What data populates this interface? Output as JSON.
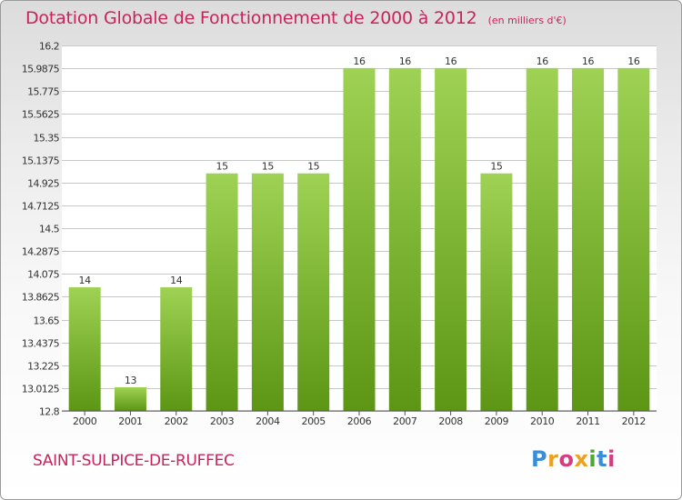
{
  "header": {
    "title": "Dotation Globale de Fonctionnement de 2000 à 2012",
    "subtitle": "(en milliers d'€)"
  },
  "footer": {
    "commune": "SAINT-SULPICE-DE-RUFFEC",
    "logo_letters": [
      "P",
      "r",
      "o",
      "x",
      "i",
      "t",
      "i"
    ],
    "logo_colors": [
      "#3a8ed8",
      "#f0a020",
      "#d83c80",
      "#f0a020",
      "#4ca830",
      "#3a8ed8",
      "#d83c80"
    ]
  },
  "colors": {
    "bar_top": "#9fd254",
    "bar_bottom": "#5c9614",
    "grid": "#c8c8c8",
    "text": "#333333",
    "title": "#c8245a"
  },
  "chart_data": {
    "type": "bar",
    "title": "Dotation Globale de Fonctionnement de 2000 à 2012",
    "subtitle": "(en milliers d'€)",
    "categories": [
      "2000",
      "2001",
      "2002",
      "2003",
      "2004",
      "2005",
      "2006",
      "2007",
      "2008",
      "2009",
      "2010",
      "2011",
      "2012"
    ],
    "values": [
      14,
      13,
      14,
      15,
      15,
      15,
      16,
      16,
      16,
      15,
      16,
      16,
      16
    ],
    "value_labels": [
      "14",
      "13",
      "14",
      "15",
      "15",
      "15",
      "16",
      "16",
      "16",
      "15",
      "16",
      "16",
      "16"
    ],
    "bar_values": [
      13.95,
      13.02,
      13.95,
      15.01,
      15.01,
      15.01,
      15.99,
      15.99,
      15.99,
      15.01,
      15.99,
      15.99,
      15.99
    ],
    "yticks": [
      12.8,
      13.0125,
      13.225,
      13.4375,
      13.65,
      13.8625,
      14.075,
      14.2875,
      14.5,
      14.7125,
      14.925,
      15.1375,
      15.35,
      15.5625,
      15.775,
      15.9875,
      16.2
    ],
    "ytick_labels": [
      "12.8",
      "13.0125",
      "13.225",
      "13.4375",
      "13.65",
      "13.8625",
      "14.075",
      "14.2875",
      "14.5",
      "14.7125",
      "14.925",
      "15.1375",
      "15.35",
      "15.5625",
      "15.775",
      "15.9875",
      "16.2"
    ],
    "ylim": [
      12.8,
      16.2
    ],
    "xlabel": "",
    "ylabel": "",
    "grid": true,
    "legend": "none"
  }
}
